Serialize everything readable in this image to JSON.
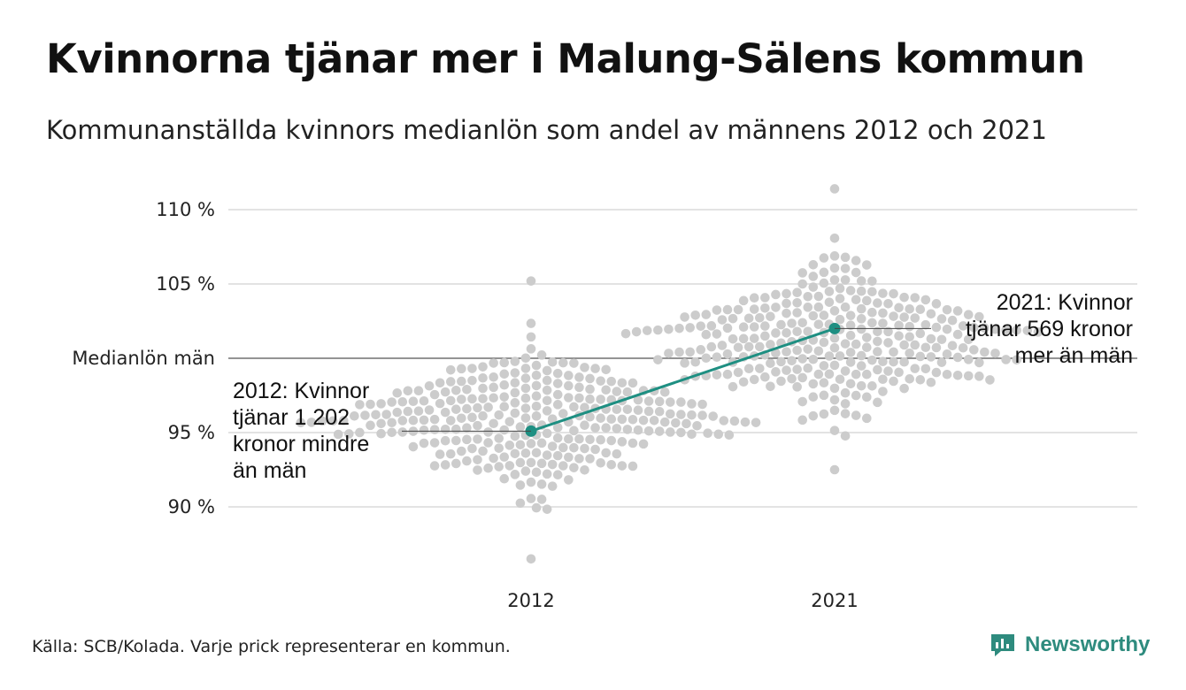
{
  "header": {
    "title": "Kvinnorna tjänar mer i Malung-Sälens kommun",
    "subtitle": "Kommunanställda kvinnors medianlön som andel av männens 2012 och 2021"
  },
  "footer": {
    "source": "Källa: SCB/Kolada. Varje prick representerar en kommun.",
    "brand": "Newsworthy"
  },
  "colors": {
    "dots": "#cccccc",
    "highlight": "#1e8f82",
    "grid": "#e3e3e3",
    "reference": "#555555",
    "brand": "#2e8b7e"
  },
  "chart_data": {
    "type": "scatter",
    "title": "Kvinnorna tjänar mer i Malung-Sälens kommun",
    "subtitle": "Kommunanställda kvinnors medianlön som andel av männens 2012 och 2021",
    "x": [
      "2012",
      "2021"
    ],
    "ylim": [
      86,
      112
    ],
    "yticks": [
      {
        "value": 90,
        "label": "90 %"
      },
      {
        "value": 95,
        "label": "95 %"
      },
      {
        "value": 100,
        "label": "Medianlön män"
      },
      {
        "value": 105,
        "label": "105 %"
      },
      {
        "value": 110,
        "label": "110 %"
      }
    ],
    "grid": true,
    "highlight_series": {
      "name": "Malung-Sälen",
      "values": [
        {
          "x": "2012",
          "y": 95.1
        },
        {
          "x": "2021",
          "y": 102.0
        }
      ]
    },
    "annotations": [
      {
        "year": "2012",
        "lines": [
          "2012: Kvinnor",
          "tjänar 1 202",
          "kronor mindre",
          "än män"
        ]
      },
      {
        "year": "2021",
        "lines": [
          "2021: Kvinnor",
          "tjänar 569 kronor",
          "mer än män"
        ]
      }
    ],
    "distributions": [
      {
        "year": "2012",
        "count": 290,
        "center": 95.8,
        "spread": 2.1,
        "min": 86.5,
        "max": 105.2,
        "seed": 7
      },
      {
        "year": "2021",
        "count": 290,
        "center": 101.0,
        "spread": 2.3,
        "min": 92.5,
        "max": 111.4,
        "seed": 23
      }
    ]
  }
}
